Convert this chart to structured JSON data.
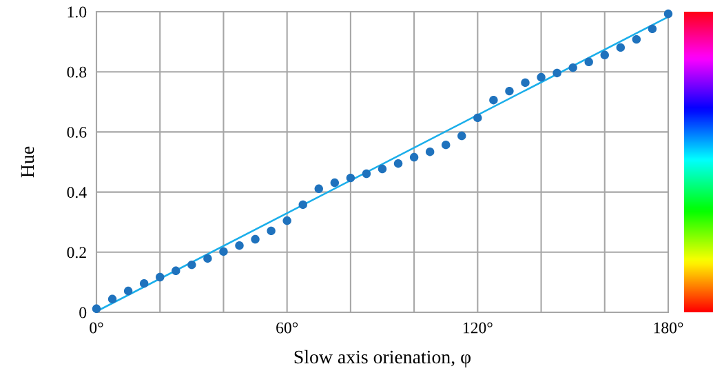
{
  "chart_data": {
    "type": "scatter",
    "xlabel": "Slow axis orienation, φ",
    "ylabel": "Hue",
    "xlim": [
      0,
      180
    ],
    "ylim": [
      0,
      1
    ],
    "xticks": [
      {
        "value": 0,
        "label": "0°"
      },
      {
        "value": 20,
        "label": null
      },
      {
        "value": 40,
        "label": null
      },
      {
        "value": 60,
        "label": "60°"
      },
      {
        "value": 80,
        "label": null
      },
      {
        "value": 100,
        "label": null
      },
      {
        "value": 120,
        "label": "120°"
      },
      {
        "value": 140,
        "label": null
      },
      {
        "value": 160,
        "label": null
      },
      {
        "value": 180,
        "label": "180°"
      }
    ],
    "yticks": [
      0,
      {
        "value": 0.2,
        "label": "0.2"
      },
      {
        "value": 0.4,
        "label": "0.4"
      },
      {
        "value": 0.6,
        "label": "0.6"
      },
      {
        "value": 0.8,
        "label": "0.8"
      },
      {
        "value": 1.0,
        "label": "1.0"
      }
    ],
    "grid": true,
    "series": [
      {
        "marker": "circle",
        "color": "#1f72bd",
        "x": [
          0,
          5,
          10,
          15,
          20,
          25,
          30,
          35,
          40,
          45,
          50,
          55,
          60,
          65,
          70,
          75,
          80,
          85,
          90,
          95,
          100,
          105,
          110,
          115,
          120,
          125,
          130,
          135,
          140,
          145,
          150,
          155,
          160,
          165,
          170,
          175,
          180
        ],
        "values": [
          0.012,
          0.044,
          0.071,
          0.096,
          0.117,
          0.138,
          0.158,
          0.179,
          0.202,
          0.222,
          0.243,
          0.271,
          0.305,
          0.358,
          0.411,
          0.431,
          0.447,
          0.461,
          0.477,
          0.495,
          0.516,
          0.534,
          0.557,
          0.587,
          0.647,
          0.706,
          0.736,
          0.764,
          0.782,
          0.796,
          0.814,
          0.833,
          0.856,
          0.881,
          0.908,
          0.943,
          0.993
        ]
      },
      {
        "type": "line",
        "color": "#1aaeea",
        "x": [
          0,
          180
        ],
        "values": [
          0.003,
          0.983
        ]
      }
    ]
  }
}
